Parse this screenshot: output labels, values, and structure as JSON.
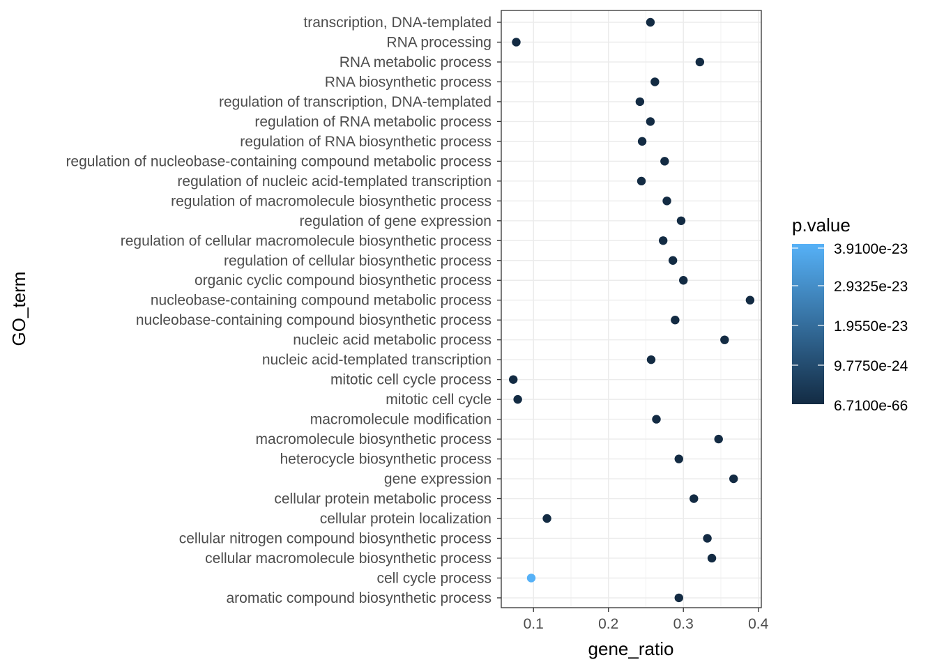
{
  "chart_data": {
    "type": "scatter",
    "xlabel": "gene_ratio",
    "ylabel": "GO_term",
    "xlim": [
      0.057,
      0.404
    ],
    "xticks": [
      0.1,
      0.2,
      0.3,
      0.4
    ],
    "xtick_labels": [
      "0.1",
      "0.2",
      "0.3",
      "0.4"
    ],
    "grid": true,
    "legend": {
      "title": "p.value",
      "position": "right",
      "labels": [
        "3.9100e-23",
        "2.9325e-23",
        "1.9550e-23",
        "9.7750e-24",
        "6.7100e-66"
      ],
      "color_low": "#132B43",
      "color_high": "#56B1F7"
    },
    "points": [
      {
        "term": "transcription, DNA-templated",
        "gene_ratio": 0.256,
        "color": "#132B43"
      },
      {
        "term": "RNA processing",
        "gene_ratio": 0.077,
        "color": "#132B43"
      },
      {
        "term": "RNA metabolic process",
        "gene_ratio": 0.322,
        "color": "#132B43"
      },
      {
        "term": "RNA biosynthetic process",
        "gene_ratio": 0.262,
        "color": "#132B43"
      },
      {
        "term": "regulation of transcription, DNA-templated",
        "gene_ratio": 0.242,
        "color": "#132B43"
      },
      {
        "term": "regulation of RNA metabolic process",
        "gene_ratio": 0.256,
        "color": "#132B43"
      },
      {
        "term": "regulation of RNA biosynthetic process",
        "gene_ratio": 0.245,
        "color": "#132B43"
      },
      {
        "term": "regulation of nucleobase-containing compound metabolic process",
        "gene_ratio": 0.275,
        "color": "#132B43"
      },
      {
        "term": "regulation of nucleic acid-templated transcription",
        "gene_ratio": 0.244,
        "color": "#132B43"
      },
      {
        "term": "regulation of macromolecule biosynthetic process",
        "gene_ratio": 0.278,
        "color": "#132B43"
      },
      {
        "term": "regulation of gene expression",
        "gene_ratio": 0.297,
        "color": "#132B43"
      },
      {
        "term": "regulation of cellular macromolecule biosynthetic process",
        "gene_ratio": 0.273,
        "color": "#132B43"
      },
      {
        "term": "regulation of cellular biosynthetic process",
        "gene_ratio": 0.286,
        "color": "#132B43"
      },
      {
        "term": "organic cyclic compound biosynthetic process",
        "gene_ratio": 0.3,
        "color": "#132B43"
      },
      {
        "term": "nucleobase-containing compound metabolic process",
        "gene_ratio": 0.389,
        "color": "#132B43"
      },
      {
        "term": "nucleobase-containing compound biosynthetic process",
        "gene_ratio": 0.289,
        "color": "#132B43"
      },
      {
        "term": "nucleic acid metabolic process",
        "gene_ratio": 0.355,
        "color": "#132B43"
      },
      {
        "term": "nucleic acid-templated transcription",
        "gene_ratio": 0.257,
        "color": "#132B43"
      },
      {
        "term": "mitotic cell cycle process",
        "gene_ratio": 0.073,
        "color": "#132B43"
      },
      {
        "term": "mitotic cell cycle",
        "gene_ratio": 0.079,
        "color": "#132B43"
      },
      {
        "term": "macromolecule modification",
        "gene_ratio": 0.264,
        "color": "#132B43"
      },
      {
        "term": "macromolecule biosynthetic process",
        "gene_ratio": 0.347,
        "color": "#132B43"
      },
      {
        "term": "heterocycle biosynthetic process",
        "gene_ratio": 0.294,
        "color": "#132B43"
      },
      {
        "term": "gene expression",
        "gene_ratio": 0.367,
        "color": "#132B43"
      },
      {
        "term": "cellular protein metabolic process",
        "gene_ratio": 0.314,
        "color": "#132B43"
      },
      {
        "term": "cellular protein localization",
        "gene_ratio": 0.118,
        "color": "#132B43"
      },
      {
        "term": "cellular nitrogen compound biosynthetic process",
        "gene_ratio": 0.332,
        "color": "#132B43"
      },
      {
        "term": "cellular macromolecule biosynthetic process",
        "gene_ratio": 0.338,
        "color": "#132B43"
      },
      {
        "term": "cell cycle process",
        "gene_ratio": 0.097,
        "color": "#56B1F7"
      },
      {
        "term": "aromatic compound biosynthetic process",
        "gene_ratio": 0.294,
        "color": "#132B43"
      }
    ]
  }
}
